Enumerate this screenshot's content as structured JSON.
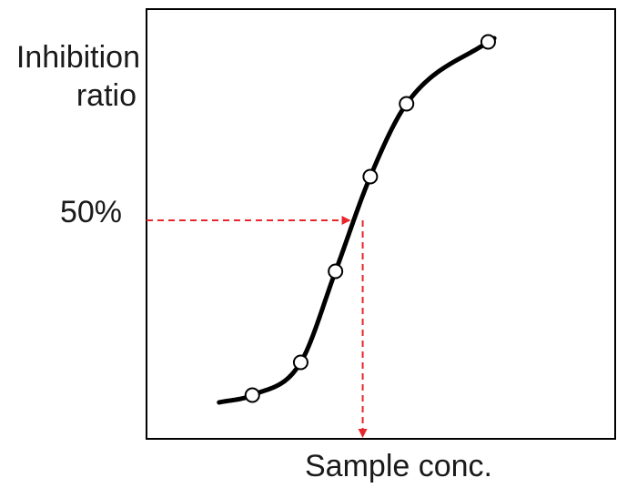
{
  "chart_data": {
    "type": "line",
    "xlabel": "Sample conc.",
    "ylabel_lines": [
      "Inhibition",
      "ratio"
    ],
    "reference": {
      "y_label": "50%",
      "y_value": 50
    },
    "points": [
      {
        "x": 1.0,
        "y": 2
      },
      {
        "x": 2.6,
        "y": 11
      },
      {
        "x": 3.75,
        "y": 36
      },
      {
        "x": 4.9,
        "y": 62
      },
      {
        "x": 6.1,
        "y": 82
      },
      {
        "x": 8.8,
        "y": 99
      }
    ],
    "curve_range": [
      -0.1,
      9.0
    ],
    "ec50_x": 4.65,
    "xlim": [
      -2.5,
      13.0
    ],
    "ylim": [
      -10,
      108
    ],
    "grid": false,
    "legend": "none",
    "colors": {
      "curve": "#000000",
      "marker_fill": "#ffffff",
      "marker_stroke": "#000000",
      "reference_line": "#e8262d",
      "axis": "#000000",
      "text": "#1a1a1a"
    }
  }
}
